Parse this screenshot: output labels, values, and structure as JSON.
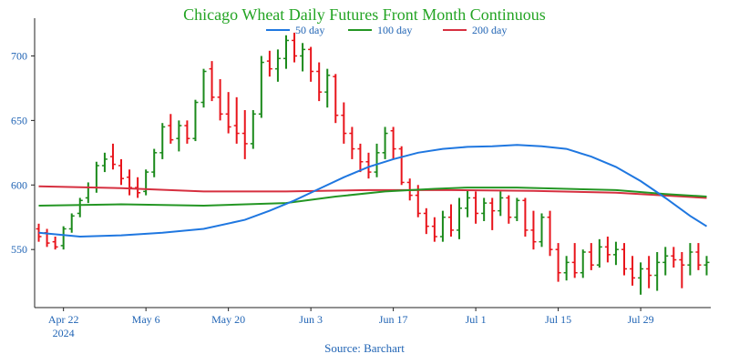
{
  "chart_data": {
    "type": "ohlc",
    "title": "Chicago Wheat Daily Futures Front Month Continuous",
    "source": "Source: Barchart",
    "colors": {
      "title": "#23a423",
      "axis_text": "#1f63b4",
      "up": "#1b8a1b",
      "down": "#e8141b",
      "ma50": "#1f77e0",
      "ma100": "#249624",
      "ma200": "#d62f3f",
      "axis": "#222222",
      "grid": "#d8d8d8"
    },
    "legend": [
      {
        "name": "50 day",
        "series": "ma50"
      },
      {
        "name": "100 day",
        "series": "ma100"
      },
      {
        "name": "200 day",
        "series": "ma200"
      }
    ],
    "x_ticks": [
      {
        "label": "Apr 22",
        "sublabel": "2024",
        "index": 3
      },
      {
        "label": "May 6",
        "sublabel": "",
        "index": 13
      },
      {
        "label": "May 20",
        "sublabel": "",
        "index": 23
      },
      {
        "label": "Jun 3",
        "sublabel": "",
        "index": 33
      },
      {
        "label": "Jun 17",
        "sublabel": "",
        "index": 43
      },
      {
        "label": "Jul 1",
        "sublabel": "",
        "index": 53
      },
      {
        "label": "Jul 15",
        "sublabel": "",
        "index": 63
      },
      {
        "label": "Jul 29",
        "sublabel": "",
        "index": 73
      }
    ],
    "y_ticks": [
      550,
      600,
      650,
      700
    ],
    "ylim": [
      505,
      725
    ],
    "xlim": [
      -0.5,
      81.5
    ],
    "grid": false,
    "ohlc": [
      [
        566,
        570,
        556,
        560
      ],
      [
        563,
        566,
        552,
        555
      ],
      [
        556,
        560,
        550,
        552
      ],
      [
        553,
        568,
        550,
        566
      ],
      [
        566,
        578,
        563,
        576
      ],
      [
        578,
        590,
        575,
        588
      ],
      [
        590,
        602,
        586,
        598
      ],
      [
        598,
        618,
        594,
        615
      ],
      [
        615,
        625,
        610,
        620
      ],
      [
        622,
        632,
        612,
        616
      ],
      [
        615,
        620,
        600,
        605
      ],
      [
        606,
        612,
        592,
        598
      ],
      [
        598,
        606,
        590,
        594
      ],
      [
        595,
        612,
        592,
        610
      ],
      [
        610,
        628,
        606,
        625
      ],
      [
        625,
        648,
        620,
        645
      ],
      [
        646,
        655,
        632,
        635
      ],
      [
        636,
        650,
        626,
        646
      ],
      [
        646,
        650,
        632,
        636
      ],
      [
        636,
        666,
        634,
        664
      ],
      [
        664,
        690,
        660,
        688
      ],
      [
        690,
        696,
        665,
        668
      ],
      [
        668,
        682,
        650,
        655
      ],
      [
        655,
        672,
        640,
        645
      ],
      [
        646,
        668,
        632,
        640
      ],
      [
        640,
        658,
        620,
        632
      ],
      [
        632,
        658,
        628,
        655
      ],
      [
        655,
        700,
        652,
        695
      ],
      [
        696,
        704,
        684,
        690
      ],
      [
        690,
        705,
        680,
        698
      ],
      [
        698,
        716,
        690,
        712
      ],
      [
        712,
        718,
        695,
        700
      ],
      [
        700,
        710,
        688,
        705
      ],
      [
        705,
        707,
        680,
        688
      ],
      [
        688,
        695,
        665,
        672
      ],
      [
        672,
        690,
        660,
        685
      ],
      [
        684,
        686,
        648,
        654
      ],
      [
        654,
        664,
        632,
        640
      ],
      [
        640,
        645,
        620,
        628
      ],
      [
        628,
        632,
        610,
        618
      ],
      [
        618,
        625,
        605,
        610
      ],
      [
        610,
        632,
        606,
        625
      ],
      [
        625,
        645,
        620,
        640
      ],
      [
        642,
        645,
        620,
        628
      ],
      [
        628,
        630,
        600,
        602
      ],
      [
        602,
        605,
        588,
        592
      ],
      [
        592,
        600,
        575,
        578
      ],
      [
        578,
        582,
        562,
        568
      ],
      [
        568,
        575,
        556,
        560
      ],
      [
        560,
        580,
        556,
        575
      ],
      [
        575,
        585,
        560,
        565
      ],
      [
        565,
        590,
        558,
        582
      ],
      [
        582,
        596,
        575,
        590
      ],
      [
        590,
        595,
        570,
        578
      ],
      [
        578,
        590,
        572,
        586
      ],
      [
        586,
        590,
        565,
        580
      ],
      [
        580,
        595,
        576,
        590
      ],
      [
        590,
        592,
        570,
        575
      ],
      [
        575,
        590,
        572,
        588
      ],
      [
        588,
        590,
        560,
        565
      ],
      [
        565,
        580,
        550,
        556
      ],
      [
        556,
        578,
        552,
        575
      ],
      [
        575,
        580,
        545,
        550
      ],
      [
        550,
        555,
        525,
        532
      ],
      [
        532,
        545,
        526,
        540
      ],
      [
        540,
        555,
        528,
        532
      ],
      [
        532,
        550,
        528,
        548
      ],
      [
        548,
        555,
        534,
        538
      ],
      [
        538,
        558,
        536,
        552
      ],
      [
        552,
        560,
        540,
        546
      ],
      [
        546,
        556,
        538,
        550
      ],
      [
        550,
        555,
        530,
        535
      ],
      [
        535,
        545,
        522,
        528
      ],
      [
        528,
        540,
        515,
        535
      ],
      [
        535,
        545,
        520,
        530
      ],
      [
        530,
        548,
        518,
        540
      ],
      [
        540,
        552,
        530,
        545
      ],
      [
        545,
        552,
        536,
        542
      ],
      [
        542,
        548,
        520,
        538
      ],
      [
        538,
        555,
        530,
        548
      ],
      [
        548,
        555,
        534,
        538
      ],
      [
        538,
        545,
        530,
        540
      ]
    ],
    "ma50": [
      [
        0,
        563
      ],
      [
        5,
        560
      ],
      [
        10,
        561
      ],
      [
        15,
        563
      ],
      [
        20,
        566
      ],
      [
        25,
        573
      ],
      [
        28,
        580
      ],
      [
        31,
        588
      ],
      [
        34,
        597
      ],
      [
        37,
        606
      ],
      [
        40,
        614
      ],
      [
        43,
        620
      ],
      [
        46,
        625
      ],
      [
        49,
        628
      ],
      [
        52,
        629.5
      ],
      [
        55,
        630
      ],
      [
        58,
        631
      ],
      [
        61,
        630
      ],
      [
        64,
        628
      ],
      [
        67,
        622
      ],
      [
        70,
        614
      ],
      [
        73,
        603
      ],
      [
        76,
        590
      ],
      [
        79,
        576
      ],
      [
        81,
        568
      ]
    ],
    "ma100": [
      [
        0,
        584
      ],
      [
        10,
        585
      ],
      [
        20,
        584
      ],
      [
        30,
        586
      ],
      [
        36,
        591
      ],
      [
        42,
        595
      ],
      [
        48,
        597
      ],
      [
        52,
        598
      ],
      [
        58,
        598
      ],
      [
        64,
        597
      ],
      [
        70,
        596
      ],
      [
        76,
        593
      ],
      [
        81,
        591
      ]
    ],
    "ma200": [
      [
        0,
        599
      ],
      [
        10,
        597.5
      ],
      [
        20,
        595
      ],
      [
        30,
        595
      ],
      [
        40,
        596
      ],
      [
        50,
        596
      ],
      [
        60,
        595.5
      ],
      [
        70,
        594
      ],
      [
        81,
        590
      ]
    ]
  }
}
